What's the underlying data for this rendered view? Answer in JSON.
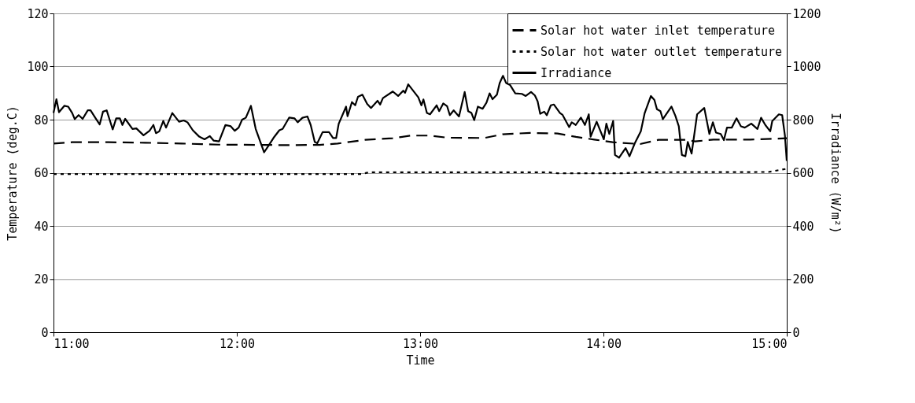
{
  "chart_data": {
    "type": "line",
    "xlabel": "Time",
    "ylabel": "Temperature (deg.C)",
    "y2label": "Irradiance (W/m²)",
    "xlim": [
      11,
      15
    ],
    "xticks": [
      {
        "value": 11,
        "label": "11:00"
      },
      {
        "value": 12,
        "label": "12:00"
      },
      {
        "value": 13,
        "label": "13:00"
      },
      {
        "value": 14,
        "label": "14:00"
      },
      {
        "value": 15,
        "label": "15:00"
      }
    ],
    "ylim": [
      0,
      120
    ],
    "yticks": [
      0,
      20,
      40,
      60,
      80,
      100,
      120
    ],
    "y2lim": [
      0,
      1200
    ],
    "y2ticks": [
      0,
      200,
      400,
      600,
      800,
      1000,
      1200
    ],
    "grid": "y",
    "legend": "top right",
    "marker": "none",
    "series": [
      {
        "name": "Solar hot water inlet temperature",
        "color": "#000000",
        "line_style": "dashed",
        "x": [
          11.0,
          11.1,
          11.3,
          11.5,
          11.7,
          11.9,
          12.1,
          12.3,
          12.45,
          12.55,
          12.7,
          12.85,
          12.95,
          13.05,
          13.15,
          13.35,
          13.45,
          13.6,
          13.75,
          13.85,
          13.95,
          14.05,
          14.2,
          14.3,
          14.45,
          14.5,
          14.6,
          14.8,
          15.0
        ],
        "values": [
          71,
          71.5,
          71.5,
          71.3,
          71,
          70.6,
          70.5,
          70.4,
          70.5,
          71,
          72.4,
          73,
          74,
          74,
          73.2,
          73.1,
          74.5,
          75,
          74.8,
          73.5,
          72.5,
          71.5,
          70.8,
          72.4,
          72.4,
          71.8,
          72.5,
          72.5,
          73
        ]
      },
      {
        "name": "Solar hot water outlet temperature",
        "color": "#000000",
        "line_style": "dotted",
        "x": [
          11.0,
          12.0,
          12.68,
          12.72,
          13.7,
          13.75,
          14.1,
          14.2,
          14.9,
          15.0
        ],
        "values": [
          59.5,
          59.5,
          59.5,
          60.2,
          60.2,
          59.8,
          59.8,
          60.2,
          60.3,
          61.5
        ]
      },
      {
        "name": "Irradiance",
        "color": "#000000",
        "line_style": "solid",
        "axis": "y2",
        "x": [
          11.0,
          11.016,
          11.03,
          11.059,
          11.08,
          11.102,
          11.116,
          11.137,
          11.159,
          11.187,
          11.202,
          11.23,
          11.252,
          11.27,
          11.29,
          11.323,
          11.342,
          11.362,
          11.376,
          11.391,
          11.431,
          11.452,
          11.491,
          11.524,
          11.545,
          11.559,
          11.577,
          11.599,
          11.614,
          11.648,
          11.685,
          11.71,
          11.731,
          11.76,
          11.795,
          11.824,
          11.853,
          11.874,
          11.903,
          11.938,
          11.967,
          11.989,
          12.01,
          12.029,
          12.049,
          12.077,
          12.103,
          12.149,
          12.175,
          12.2,
          12.232,
          12.25,
          12.286,
          12.315,
          12.332,
          12.358,
          12.385,
          12.403,
          12.425,
          12.439,
          12.468,
          12.503,
          12.525,
          12.542,
          12.556,
          12.596,
          12.604,
          12.628,
          12.646,
          12.661,
          12.685,
          12.711,
          12.732,
          12.768,
          12.782,
          12.797,
          12.851,
          12.88,
          12.908,
          12.918,
          12.935,
          12.99,
          13.007,
          13.018,
          13.037,
          13.054,
          13.09,
          13.104,
          13.126,
          13.147,
          13.162,
          13.183,
          13.212,
          13.243,
          13.262,
          13.28,
          13.295,
          13.315,
          13.341,
          13.362,
          13.379,
          13.395,
          13.419,
          13.434,
          13.452,
          13.469,
          13.491,
          13.519,
          13.555,
          13.576,
          13.605,
          13.626,
          13.641,
          13.655,
          13.677,
          13.691,
          13.713,
          13.73,
          13.763,
          13.777,
          13.813,
          13.827,
          13.849,
          13.877,
          13.899,
          13.92,
          13.93,
          13.963,
          14.002,
          14.016,
          14.032,
          14.053,
          14.063,
          14.085,
          14.121,
          14.142,
          14.171,
          14.204,
          14.225,
          14.259,
          14.278,
          14.292,
          14.311,
          14.324,
          14.371,
          14.392,
          14.411,
          14.428,
          14.447,
          14.46,
          14.481,
          14.511,
          14.55,
          14.578,
          14.597,
          14.614,
          14.64,
          14.657,
          14.674,
          14.7,
          14.726,
          14.75,
          14.771,
          14.807,
          14.84,
          14.86,
          14.883,
          14.91,
          14.921,
          14.957,
          14.975,
          14.99,
          15.0
        ],
        "values": [
          825,
          877,
          828,
          852,
          849,
          825,
          802,
          817,
          803,
          835,
          835,
          805,
          782,
          830,
          835,
          763,
          805,
          805,
          780,
          803,
          765,
          767,
          741,
          758,
          780,
          749,
          756,
          795,
          770,
          825,
          792,
          797,
          790,
          760,
          736,
          726,
          738,
          721,
          718,
          780,
          775,
          758,
          770,
          800,
          807,
          852,
          765,
          677,
          704,
          731,
          760,
          765,
          808,
          805,
          790,
          807,
          812,
          780,
          716,
          711,
          753,
          753,
          731,
          731,
          785,
          849,
          813,
          866,
          854,
          886,
          894,
          859,
          844,
          871,
          857,
          881,
          906,
          889,
          909,
          901,
          933,
          884,
          854,
          876,
          825,
          820,
          854,
          832,
          861,
          851,
          817,
          835,
          812,
          904,
          832,
          825,
          798,
          849,
          841,
          864,
          899,
          877,
          894,
          938,
          965,
          938,
          930,
          899,
          897,
          889,
          904,
          891,
          869,
          822,
          830,
          817,
          854,
          857,
          825,
          818,
          772,
          790,
          780,
          808,
          780,
          820,
          736,
          792,
          726,
          785,
          746,
          795,
          667,
          657,
          693,
          662,
          711,
          756,
          825,
          889,
          874,
          839,
          832,
          802,
          849,
          815,
          775,
          667,
          662,
          716,
          672,
          820,
          844,
          746,
          790,
          751,
          746,
          723,
          770,
          770,
          805,
          775,
          770,
          785,
          765,
          807,
          780,
          756,
          795,
          820,
          817,
          740,
          645
        ]
      }
    ]
  }
}
